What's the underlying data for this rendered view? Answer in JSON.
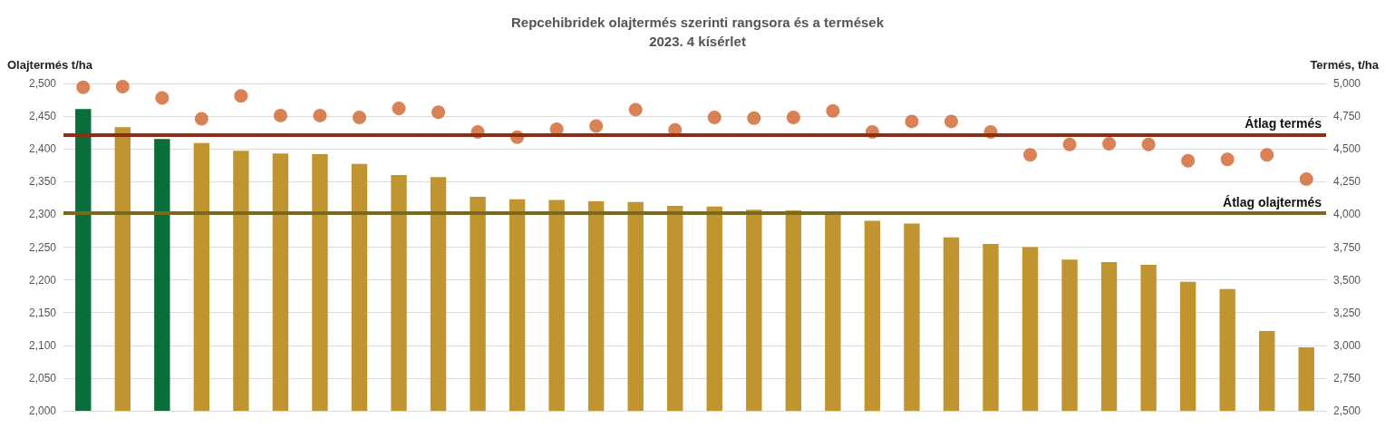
{
  "chart_data": {
    "type": "bar",
    "title": "Repcehibridek olajtermés szerinti rangsora és a termések",
    "subtitle": "2023. 4 kísérlet",
    "ylabel": "Olajtermés t/ha",
    "y2label": "Termés, t/ha",
    "categories": [
      null,
      null,
      null,
      null,
      null,
      null,
      null,
      null,
      null,
      null,
      null,
      null,
      null,
      null,
      null,
      null,
      null,
      null,
      null,
      null,
      null,
      null,
      null,
      null,
      null,
      null,
      null,
      null,
      null,
      null,
      null,
      null
    ],
    "series": [
      {
        "colors": [
          "#0a6e3a",
          "#c0952f",
          "#0a6e3a",
          "#c0952f",
          "#c0952f",
          "#c0952f",
          "#c0952f",
          "#c0952f",
          "#c0952f",
          "#c0952f",
          "#c0952f",
          "#c0952f",
          "#c0952f",
          "#c0952f",
          "#c0952f",
          "#c0952f",
          "#c0952f",
          "#c0952f",
          "#c0952f",
          "#c0952f",
          "#c0952f",
          "#c0952f",
          "#c0952f",
          "#c0952f",
          "#c0952f",
          "#c0952f",
          "#c0952f",
          "#c0952f",
          "#c0952f",
          "#c0952f",
          "#c0952f",
          "#c0952f"
        ],
        "values": [
          2461,
          2433,
          2415,
          2409,
          2397,
          2393,
          2392,
          2377,
          2360,
          2357,
          2327,
          2323,
          2322,
          2320,
          2319,
          2313,
          2312,
          2307,
          2306,
          2303,
          2290,
          2286,
          2265,
          2255,
          2250,
          2231,
          2227,
          2223,
          2197,
          2186,
          2122,
          2097
        ]
      },
      {
        "type": "scatter",
        "axis": "y2",
        "color": "#d0632a",
        "marker": "circle",
        "values": [
          4970,
          4975,
          4890,
          4730,
          4905,
          4755,
          4755,
          4740,
          4810,
          4780,
          4630,
          4590,
          4650,
          4675,
          4800,
          4645,
          4740,
          4735,
          4740,
          4790,
          4630,
          4710,
          4710,
          4630,
          4455,
          4535,
          4540,
          4535,
          4410,
          4420,
          4455,
          4270
        ]
      }
    ],
    "ylim": [
      2000,
      2500
    ],
    "yticks": [
      {
        "value": 2000,
        "label": "2,000"
      },
      {
        "value": 2050,
        "label": "2,050"
      },
      {
        "value": 2100,
        "label": "2,100"
      },
      {
        "value": 2150,
        "label": "2,150"
      },
      {
        "value": 2200,
        "label": "2,200"
      },
      {
        "value": 2250,
        "label": "2,250"
      },
      {
        "value": 2300,
        "label": "2,300"
      },
      {
        "value": 2350,
        "label": "2,350"
      },
      {
        "value": 2400,
        "label": "2,400"
      },
      {
        "value": 2450,
        "label": "2,450"
      },
      {
        "value": 2500,
        "label": "2,500"
      }
    ],
    "y2lim": [
      2500,
      5000
    ],
    "y2ticks": [
      {
        "value": 2500,
        "label": "2,500"
      },
      {
        "value": 2750,
        "label": "2,750"
      },
      {
        "value": 3000,
        "label": "3,000"
      },
      {
        "value": 3250,
        "label": "3,250"
      },
      {
        "value": 3500,
        "label": "3,500"
      },
      {
        "value": 3750,
        "label": "3,750"
      },
      {
        "value": 4000,
        "label": "4,000"
      },
      {
        "value": 4250,
        "label": "4,250"
      },
      {
        "value": 4500,
        "label": "4,500"
      },
      {
        "value": 4750,
        "label": "4,750"
      },
      {
        "value": 5000,
        "label": "5,000"
      }
    ],
    "ref_lines": [
      {
        "axis": "y2",
        "value": 4610,
        "label": "Átlag termés",
        "color": "#8b2e14"
      },
      {
        "axis": "y",
        "value": 2302,
        "label": "Átlag olajtermés",
        "color": "#7a6a1e"
      }
    ],
    "grid": "y"
  }
}
